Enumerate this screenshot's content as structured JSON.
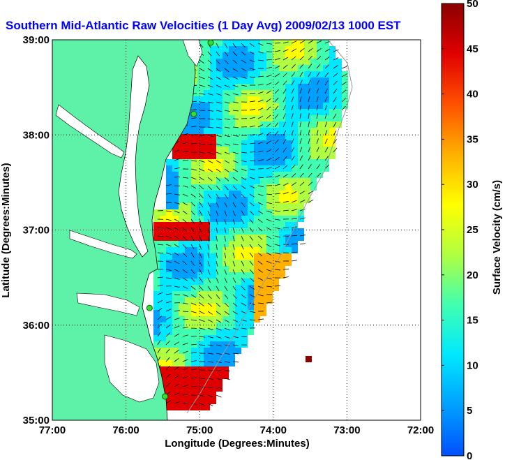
{
  "chart_data": {
    "type": "heatmap",
    "title": "Southern Mid-Atlantic Raw Velocities (1 Day Avg) 2009/02/13 1000 EST",
    "xlabel": "Longitude (Degrees:Minutes)",
    "ylabel": "Latitude (Degrees:Minutes)",
    "x_ticks": [
      "77:00",
      "76:00",
      "75:00",
      "74:00",
      "73:00",
      "72:00"
    ],
    "y_ticks": [
      "39:00",
      "38:00",
      "37:00",
      "36:00",
      "35:00"
    ],
    "xlim": [
      -77,
      -72
    ],
    "ylim": [
      35,
      39
    ],
    "grid": true,
    "colorbar": {
      "label": "Surface Velocity (cm/s)",
      "ticks": [
        "0",
        "5",
        "10",
        "15",
        "20",
        "25",
        "30",
        "35",
        "40",
        "45",
        "50"
      ],
      "range": [
        0,
        50
      ],
      "colors": [
        "#0050ff",
        "#00a0ff",
        "#00e8ff",
        "#40ffb0",
        "#b0ff40",
        "#ffff00",
        "#ffb000",
        "#ff5000",
        "#e00000",
        "#8b0000"
      ]
    },
    "land_color": "#5ef2a8",
    "stations": [
      {
        "lon": -74.85,
        "lat": 38.97
      },
      {
        "lon": -75.08,
        "lat": 38.22
      },
      {
        "lon": -75.68,
        "lat": 36.18
      },
      {
        "lon": -75.47,
        "lat": 35.25
      }
    ]
  }
}
